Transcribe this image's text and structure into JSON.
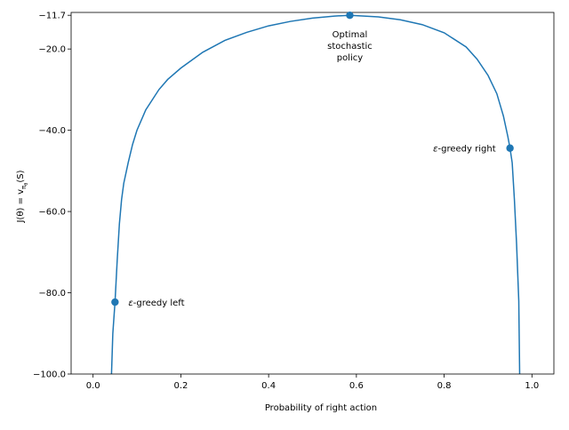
{
  "chart_data": {
    "type": "line",
    "title": "",
    "xlabel": "Probability of right action",
    "ylabel": {
      "main": "J(θ) = v",
      "sub": "π",
      "subsub": "θ",
      "tail": "(S)"
    },
    "xlim": [
      -0.05,
      1.05
    ],
    "ylim": [
      -100.0,
      -11.0
    ],
    "x_ticks": [
      0.0,
      0.2,
      0.4,
      0.6,
      0.8,
      1.0
    ],
    "x_tick_labels": [
      "0.0",
      "0.2",
      "0.4",
      "0.6",
      "0.8",
      "1.0"
    ],
    "y_ticks": [
      -100.0,
      -80.0,
      -60.0,
      -40.0,
      -20.0,
      -11.7
    ],
    "y_tick_labels": [
      "−100.0",
      "−80.0",
      "−60.0",
      "−40.0",
      "−20.0",
      "−11.7"
    ],
    "grid": false,
    "line_color": "#1f77b4",
    "series": [
      {
        "x": [
          0.042,
          0.045,
          0.05,
          0.055,
          0.06,
          0.065,
          0.07,
          0.08,
          0.09,
          0.1,
          0.12,
          0.15,
          0.17,
          0.2,
          0.25,
          0.3,
          0.35,
          0.4,
          0.45,
          0.5,
          0.55,
          0.585,
          0.6,
          0.65,
          0.7,
          0.75,
          0.8,
          0.85,
          0.875,
          0.9,
          0.92,
          0.935,
          0.945,
          0.95,
          0.955,
          0.96,
          0.965,
          0.97,
          0.972
        ],
        "y": [
          -100.0,
          -90.0,
          -82.3,
          -72.0,
          -63.0,
          -57.0,
          -53.0,
          -48.0,
          -43.5,
          -40.0,
          -35.0,
          -30.0,
          -27.5,
          -24.7,
          -20.8,
          -17.9,
          -15.9,
          -14.3,
          -13.2,
          -12.4,
          -11.9,
          -11.7,
          -11.8,
          -12.1,
          -12.8,
          -14.0,
          -16.0,
          -19.5,
          -22.5,
          -26.5,
          -31.0,
          -36.5,
          -41.5,
          -44.4,
          -48.0,
          -57.0,
          -68.0,
          -82.0,
          -100.0
        ]
      }
    ],
    "points": [
      {
        "x": 0.05,
        "y": -82.3
      },
      {
        "x": 0.585,
        "y": -11.7
      },
      {
        "x": 0.95,
        "y": -44.4
      }
    ],
    "annotations": [
      {
        "eps": "ε",
        "text": "-greedy left",
        "lines": []
      },
      {
        "eps": "",
        "text": "",
        "lines": [
          "Optimal",
          "stochastic",
          "policy"
        ]
      },
      {
        "eps": "ε",
        "text": "-greedy right",
        "lines": []
      }
    ]
  }
}
